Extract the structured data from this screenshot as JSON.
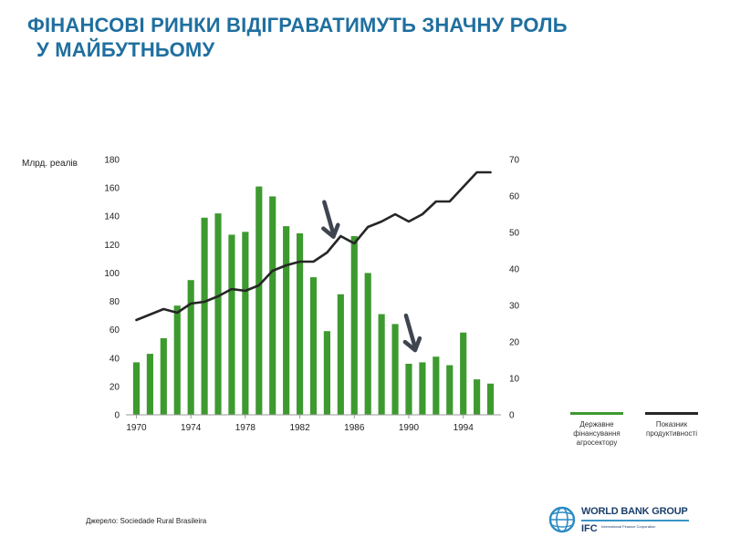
{
  "slide": {
    "title_line1": "ФІНАНСОВІ РИНКИ ВІДІГРАВАТИМУТЬ ЗНАЧНУ РОЛЬ",
    "title_line2": "У МАЙБУТНЬОМУ",
    "source": "Джерело: Sociedade Rural Brasileira",
    "title_color": "#1f6f9f"
  },
  "logo": {
    "brand": "WORLD BANK GROUP",
    "sub_brand": "IFC",
    "sub_brand_caption": "International Finance Corporation",
    "icon": "globe-icon"
  },
  "chart_data": {
    "type": "bar+line",
    "x": [
      1970,
      1971,
      1972,
      1973,
      1974,
      1975,
      1976,
      1977,
      1978,
      1979,
      1980,
      1981,
      1982,
      1983,
      1984,
      1985,
      1986,
      1987,
      1988,
      1989,
      1990,
      1991,
      1992,
      1993,
      1994,
      1995,
      1996
    ],
    "x_tick_labels": [
      "1970",
      "1974",
      "1978",
      "1982",
      "1986",
      "1990",
      "1994"
    ],
    "series": [
      {
        "name": "Державне фінансування агросектору",
        "kind": "bar",
        "axis": "left",
        "color": "#3d9a2f",
        "values": [
          37,
          43,
          54,
          77,
          95,
          139,
          142,
          127,
          129,
          161,
          154,
          133,
          128,
          97,
          59,
          85,
          126,
          100,
          71,
          64,
          36,
          37,
          41,
          35,
          58,
          25,
          22
        ]
      },
      {
        "name": "Показник продуктивності",
        "kind": "line",
        "axis": "right",
        "color": "#262626",
        "values": [
          26,
          27.5,
          29,
          28,
          30.5,
          31,
          32.5,
          34.5,
          34,
          35.5,
          39.5,
          41,
          42,
          42,
          44.5,
          49,
          47,
          51.5,
          53,
          55,
          53,
          55,
          58.5,
          58.5,
          62.5,
          66.5,
          66.5
        ]
      }
    ],
    "ylabel_left": "Млрд. реалів",
    "ylim_left": [
      0,
      180
    ],
    "yticks_left": [
      0,
      20,
      40,
      60,
      80,
      100,
      120,
      140,
      160,
      180
    ],
    "ylim_right": [
      0,
      70
    ],
    "yticks_right": [
      0,
      10,
      20,
      30,
      40,
      50,
      60,
      70
    ],
    "annotations": [
      {
        "type": "arrow",
        "at_year": 1985,
        "direction": "down"
      },
      {
        "type": "arrow",
        "at_year": 1991,
        "direction": "down"
      }
    ],
    "legend_position": "bottom-right",
    "grid": false
  }
}
